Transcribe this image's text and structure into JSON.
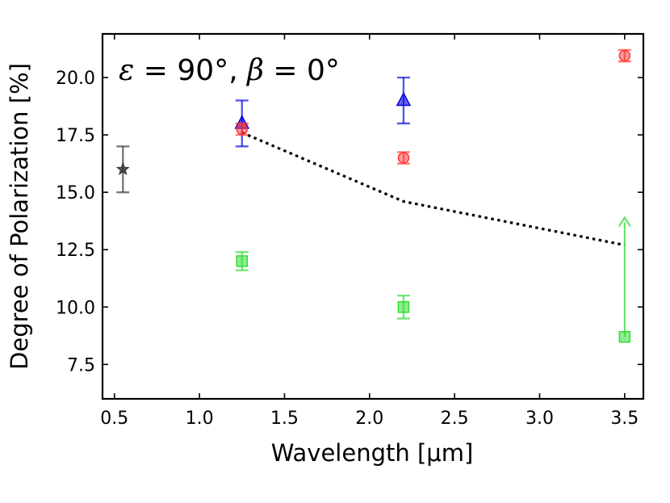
{
  "chart_data": {
    "type": "scatter",
    "xlabel": "Wavelength [μm]",
    "ylabel": "Degree of Polarization [%]",
    "xlim": [
      0.43,
      3.61
    ],
    "ylim": [
      6.0,
      21.9
    ],
    "xticks": [
      0.5,
      1.0,
      1.5,
      2.0,
      2.5,
      3.0,
      3.5
    ],
    "xtick_labels": [
      "0.5",
      "1.0",
      "1.5",
      "2.0",
      "2.5",
      "3.0",
      "3.5"
    ],
    "yticks": [
      7.5,
      10.0,
      12.5,
      15.0,
      17.5,
      20.0
    ],
    "ytick_labels": [
      "7.5",
      "10.0",
      "12.5",
      "15.0",
      "17.5",
      "20.0"
    ],
    "annotation": {
      "epsilon_symbol": "ε",
      "epsilon_value": " = 90°, ",
      "beta_symbol": "β",
      "beta_value": " = 0°"
    },
    "series": [
      {
        "name": "model",
        "kind": "dotted-line",
        "color": "#000000",
        "points": [
          [
            1.25,
            17.6
          ],
          [
            2.2,
            14.6
          ],
          [
            3.5,
            12.7
          ]
        ]
      },
      {
        "name": "black-star",
        "kind": "marker",
        "marker": "star",
        "color": "#333333",
        "points": [
          {
            "x": 0.55,
            "y": 16.0,
            "yerr": 1.0
          }
        ]
      },
      {
        "name": "blue-triangle",
        "kind": "marker",
        "marker": "triangle",
        "color": "#0000dd",
        "points": [
          {
            "x": 1.25,
            "y": 18.0,
            "yerr": 1.0
          },
          {
            "x": 2.2,
            "y": 19.0,
            "yerr": 1.0
          }
        ]
      },
      {
        "name": "red-circle",
        "kind": "marker",
        "marker": "circle",
        "color": "#ff3333",
        "points": [
          {
            "x": 1.25,
            "y": 17.75,
            "yerr": 0.25
          },
          {
            "x": 2.2,
            "y": 16.5,
            "yerr": 0.25
          },
          {
            "x": 3.5,
            "y": 20.95,
            "yerr": 0.25
          }
        ]
      },
      {
        "name": "green-square",
        "kind": "marker",
        "marker": "square",
        "color": "#33dd33",
        "points": [
          {
            "x": 1.25,
            "y": 12.0,
            "yerr": 0.4
          },
          {
            "x": 2.2,
            "y": 10.0,
            "yerr": 0.5
          },
          {
            "x": 3.5,
            "y": 8.7,
            "yerr": 0.0
          }
        ]
      },
      {
        "name": "green-lower-limit",
        "kind": "limit-arrow",
        "color": "#33dd33",
        "points": [
          {
            "x": 3.5,
            "y_from": 8.7,
            "y_to": 13.9
          }
        ]
      }
    ]
  }
}
